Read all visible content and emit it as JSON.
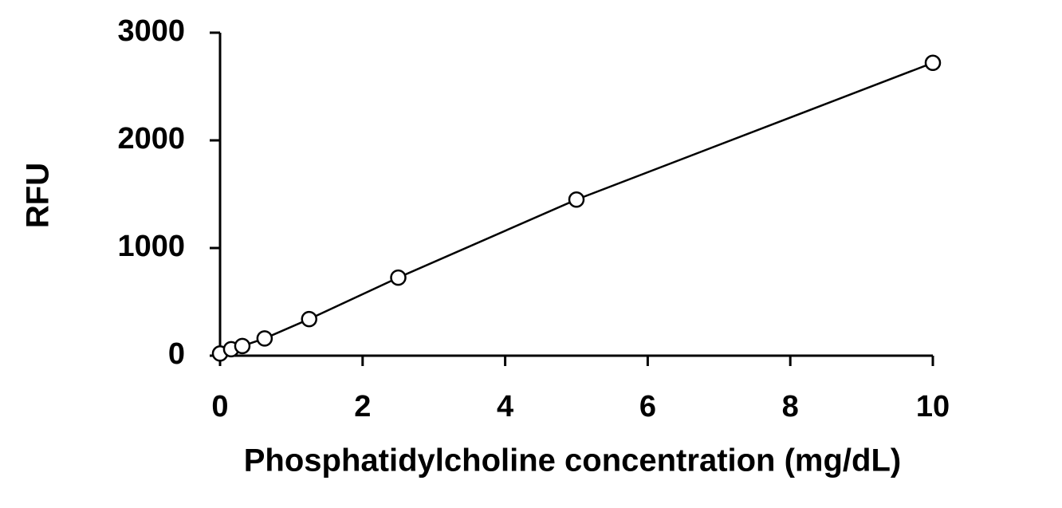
{
  "chart_data": {
    "type": "scatter",
    "x_label": "Phosphatidylcholine concentration (mg/dL)",
    "y_label": "RFU",
    "x": [
      0,
      0.156,
      0.3125,
      0.625,
      1.25,
      2.5,
      5,
      10
    ],
    "values": [
      20,
      60,
      90,
      160,
      340,
      725,
      1450,
      2720
    ],
    "color": "#000000",
    "connect": true,
    "xlim": [
      0,
      10
    ],
    "xticks": [
      0,
      2,
      4,
      6,
      8,
      10
    ],
    "ylim": [
      0,
      3000
    ],
    "yticks": [
      0,
      1000,
      2000,
      3000
    ],
    "grid": false
  }
}
